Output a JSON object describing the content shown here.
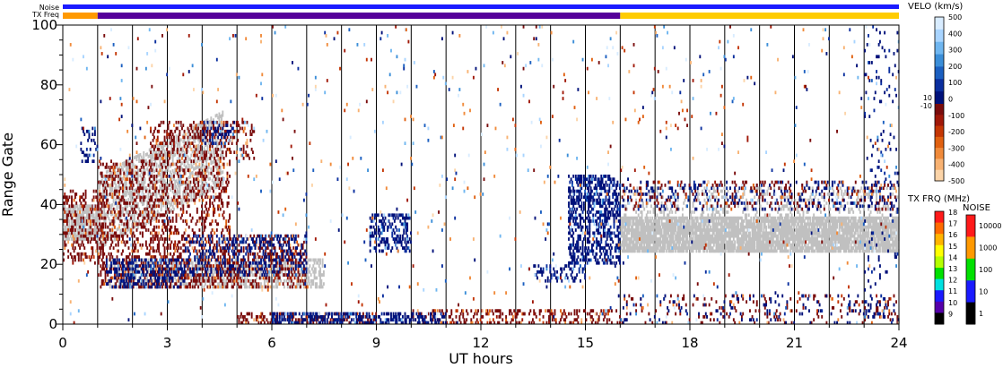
{
  "chart_data": {
    "type": "heatmap",
    "xlabel": "UT hours",
    "ylabel": "Range Gate",
    "xlim": [
      0,
      24
    ],
    "ylim": [
      0,
      100
    ],
    "x_ticks": [
      "0",
      "3",
      "6",
      "9",
      "12",
      "15",
      "18",
      "21",
      "24"
    ],
    "y_ticks": [
      "0",
      "20",
      "40",
      "60",
      "80",
      "100"
    ],
    "grid": "vertical lines every hour",
    "header_bars": {
      "noise_label": "Noise",
      "txfreq_label": "TX Freq",
      "noise_color": "#1a1aff",
      "txfreq_segments": [
        {
          "x0": 0,
          "x1": 1,
          "color": "#ff9900"
        },
        {
          "x0": 1,
          "x1": 16,
          "color": "#550099"
        },
        {
          "x0": 16,
          "x1": 24,
          "color": "#ffcc00"
        }
      ]
    },
    "velocity_colorbar": {
      "title": "VELO (km/s)",
      "ticks": [
        "500",
        "400",
        "300",
        "200",
        "100",
        "0",
        "-100",
        "-200",
        "-300",
        "-400",
        "-500"
      ],
      "side_labels": [
        "10",
        "-10"
      ],
      "positive_colors": [
        "#d8ecff",
        "#a8d4ff",
        "#6fb6f0",
        "#3b8ed8",
        "#1b5fc0",
        "#0a2e9e",
        "#00117a"
      ],
      "negative_colors": [
        "#7a0c0c",
        "#a01808",
        "#c43604",
        "#e06010",
        "#f08a3a",
        "#f8b272",
        "#fcd4a8"
      ]
    },
    "txfreq_colorbar": {
      "title": "TX FRQ (MHz)",
      "ticks": [
        "18",
        "17",
        "16",
        "15",
        "14",
        "13",
        "12",
        "11",
        "10",
        "9"
      ],
      "colors": [
        "#ff1a1a",
        "#ff6a00",
        "#ffb400",
        "#ffff00",
        "#b4ff00",
        "#00e000",
        "#00e0e0",
        "#1a1aff",
        "#5500aa",
        "#000000"
      ]
    },
    "noise_colorbar": {
      "title": "NOISE",
      "ticks": [
        "10000",
        "1000",
        "100",
        "10",
        "1"
      ],
      "colors": [
        "#ff1a1a",
        "#ff9900",
        "#00e000",
        "#1a1aff",
        "#000000"
      ]
    },
    "ground_scatter_color": "#c0c0c0",
    "scatter_regions": [
      {
        "kind": "ground",
        "x0": 0,
        "x1": 1.0,
        "y0": 28,
        "y1": 40,
        "density": 0.75
      },
      {
        "kind": "ground",
        "x0": 1.0,
        "x1": 4.6,
        "y0": 25,
        "y1": 50,
        "density": 0.45,
        "slope": 6
      },
      {
        "kind": "ground",
        "x0": 1.3,
        "x1": 7.5,
        "y0": 12,
        "y1": 22,
        "density": 0.45
      },
      {
        "kind": "ground",
        "x0": 16.0,
        "x1": 24.0,
        "y0": 24,
        "y1": 36,
        "density": 0.85
      },
      {
        "kind": "ground",
        "x0": 16.0,
        "x1": 24.0,
        "y0": 36,
        "y1": 46,
        "density": 0.18
      },
      {
        "kind": "neg",
        "x0": 0,
        "x1": 1.2,
        "y0": 20,
        "y1": 45,
        "density": 0.25
      },
      {
        "kind": "neg",
        "x0": 1.0,
        "x1": 4.8,
        "y0": 30,
        "y1": 55,
        "density": 0.22
      },
      {
        "kind": "neg",
        "x0": 2.5,
        "x1": 5.5,
        "y0": 55,
        "y1": 68,
        "density": 0.22
      },
      {
        "kind": "neg",
        "x0": 1.0,
        "x1": 7.0,
        "y0": 12,
        "y1": 30,
        "density": 0.3
      },
      {
        "kind": "neg",
        "x0": 5.0,
        "x1": 9.0,
        "y0": 0,
        "y1": 4,
        "density": 0.3
      },
      {
        "kind": "neg",
        "x0": 10.0,
        "x1": 16.0,
        "y0": 0,
        "y1": 5,
        "density": 0.25
      },
      {
        "kind": "pos",
        "x0": 1.2,
        "x1": 3.5,
        "y0": 12,
        "y1": 22,
        "density": 0.35
      },
      {
        "kind": "pos",
        "x0": 3.5,
        "x1": 7.0,
        "y0": 16,
        "y1": 30,
        "density": 0.25
      },
      {
        "kind": "pos",
        "x0": 0.5,
        "x1": 1.0,
        "y0": 54,
        "y1": 66,
        "density": 0.2
      },
      {
        "kind": "pos",
        "x0": 4.0,
        "x1": 5.0,
        "y0": 60,
        "y1": 68,
        "density": 0.2
      },
      {
        "kind": "pos",
        "x0": 8.8,
        "x1": 10.0,
        "y0": 24,
        "y1": 37,
        "density": 0.35
      },
      {
        "kind": "pos",
        "x0": 6.0,
        "x1": 11.0,
        "y0": 0,
        "y1": 4,
        "density": 0.45
      },
      {
        "kind": "pos",
        "x0": 14.5,
        "x1": 16.0,
        "y0": 20,
        "y1": 50,
        "density": 0.45
      },
      {
        "kind": "pos",
        "x0": 13.5,
        "x1": 15.0,
        "y0": 14,
        "y1": 20,
        "density": 0.3
      },
      {
        "kind": "pos",
        "x0": 16.0,
        "x1": 24.0,
        "y0": 38,
        "y1": 48,
        "density": 0.12
      },
      {
        "kind": "neg",
        "x0": 16.0,
        "x1": 24.0,
        "y0": 38,
        "y1": 48,
        "density": 0.08
      },
      {
        "kind": "neg",
        "x0": 16.0,
        "x1": 24.0,
        "y0": 0,
        "y1": 10,
        "density": 0.08
      },
      {
        "kind": "pos",
        "x0": 16.0,
        "x1": 24.0,
        "y0": 0,
        "y1": 10,
        "density": 0.06
      },
      {
        "kind": "pos",
        "x0": 23.0,
        "x1": 24.0,
        "y0": 0,
        "y1": 100,
        "density": 0.05
      },
      {
        "kind": "sparse",
        "x0": 0,
        "x1": 24,
        "y0": 0,
        "y1": 100,
        "density": 0.012
      }
    ]
  }
}
